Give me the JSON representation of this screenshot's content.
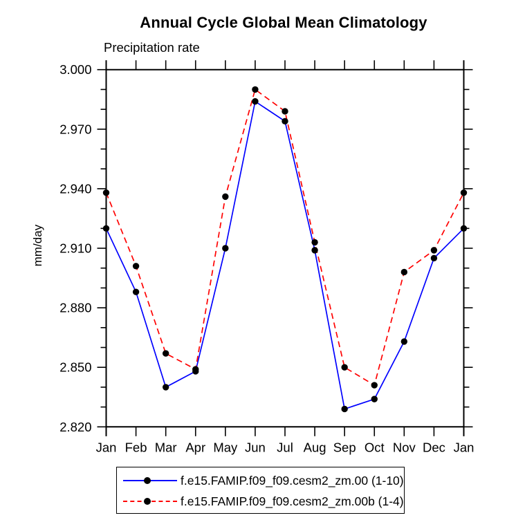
{
  "chart_data": {
    "type": "line",
    "title": "Annual Cycle Global Mean Climatology",
    "subtitle": "Precipitation rate",
    "ylabel": "mm/day",
    "categories": [
      "Jan",
      "Feb",
      "Mar",
      "Apr",
      "May",
      "Jun",
      "Jul",
      "Aug",
      "Sep",
      "Oct",
      "Nov",
      "Dec",
      "Jan"
    ],
    "ylim": [
      2.82,
      3.0
    ],
    "y_major_step": 0.03,
    "y_minor_step": 0.01,
    "y_tick_decimals": 3,
    "y_tick_labels": [
      "3.000",
      "2.970",
      "2.940",
      "2.910",
      "2.880",
      "2.850",
      "2.820"
    ],
    "grid": false,
    "legend_position": "bottom",
    "marker": "filled-circle",
    "marker_color": "#000000",
    "axis_color": "#000000",
    "series": [
      {
        "name": "f.e15.FAMIP.f09_f09.cesm2_zm.00 (1-10)",
        "color": "#0000ff",
        "line_style": "solid",
        "values": [
          2.92,
          2.888,
          2.84,
          2.848,
          2.91,
          2.984,
          2.974,
          2.909,
          2.829,
          2.834,
          2.863,
          2.905,
          2.92
        ]
      },
      {
        "name": "f.e15.FAMIP.f09_f09.cesm2_zm.00b (1-4)",
        "color": "#ff0000",
        "line_style": "dashed",
        "values": [
          2.938,
          2.901,
          2.857,
          2.849,
          2.936,
          2.99,
          2.979,
          2.913,
          2.85,
          2.841,
          2.898,
          2.909,
          2.938
        ]
      }
    ]
  }
}
